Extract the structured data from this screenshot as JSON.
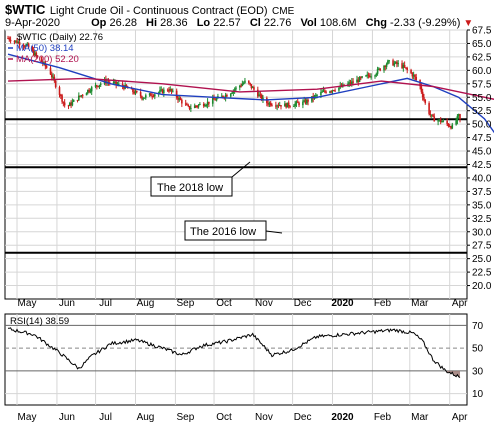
{
  "header": {
    "symbol": "$WTIC",
    "name": "Light Crude Oil - Continuous Contract (EOD)",
    "exchange": "CME",
    "date": "9-Apr-2020",
    "op_label": "Op",
    "op": "26.28",
    "hi_label": "Hi",
    "hi": "28.36",
    "lo_label": "Lo",
    "lo": "22.57",
    "cl_label": "Cl",
    "cl": "22.76",
    "vol_label": "Vol",
    "vol": "108.6M",
    "chg_label": "Chg",
    "chg": "-2.33 (-9.29%)",
    "chg_arrow": "▼"
  },
  "legend": {
    "price": "$WTIC (Daily) 22.76",
    "ma50": "MA(50) 38.14",
    "ma200": "MA(200) 52.20"
  },
  "annotations": {
    "low2018": "The 2018 low",
    "low2016": "The 2016 low"
  },
  "rsi_label": "RSI(14) 38.59",
  "colors": {
    "ma50": "#1f3fbf",
    "ma200": "#b0124f",
    "up": "#1b8a2e",
    "down": "#cc1b1b",
    "rsi_fill": "#9c7a76",
    "grid": "#d6d6d6"
  },
  "chart_data": [
    {
      "type": "candlestick",
      "title": "$WTIC (Daily) 22.76",
      "x_range": [
        "2019-04-24",
        "2020-04-09"
      ],
      "months": [
        "May",
        "Jun",
        "Jul",
        "Aug",
        "Sep",
        "Oct",
        "Nov",
        "Dec",
        "2020",
        "Feb",
        "Mar",
        "Apr"
      ],
      "ylim": [
        17.5,
        67.5
      ],
      "y_ticks": [
        20.0,
        22.5,
        25.0,
        27.5,
        30.0,
        32.5,
        35.0,
        37.5,
        40.0,
        42.5,
        45.0,
        47.5,
        50.0,
        52.5,
        55.0,
        57.5,
        60.0,
        62.5,
        65.0,
        67.5
      ],
      "horizontal_lines": [
        50.9,
        42.0,
        26.1
      ],
      "close_path": [
        [
          0,
          66.0
        ],
        [
          15,
          64.5
        ],
        [
          32,
          60.0
        ],
        [
          45,
          53.0
        ],
        [
          60,
          56.0
        ],
        [
          75,
          58.0
        ],
        [
          90,
          57.0
        ],
        [
          105,
          55.0
        ],
        [
          125,
          56.5
        ],
        [
          140,
          53.0
        ],
        [
          155,
          54.0
        ],
        [
          170,
          55.5
        ],
        [
          185,
          58.0
        ],
        [
          200,
          54.0
        ],
        [
          215,
          53.5
        ],
        [
          230,
          54.0
        ],
        [
          245,
          56.0
        ],
        [
          260,
          57.0
        ],
        [
          275,
          58.5
        ],
        [
          285,
          59.5
        ],
        [
          295,
          61.5
        ],
        [
          305,
          61.0
        ],
        [
          315,
          59.0
        ],
        [
          320,
          57.0
        ],
        [
          325,
          53.0
        ],
        [
          330,
          51.0
        ],
        [
          337,
          50.5
        ],
        [
          345,
          49.5
        ],
        [
          350,
          51.5
        ],
        [
          355,
          48.0
        ],
        [
          360,
          46.0
        ],
        [
          367,
          45.0
        ],
        [
          372,
          42.5
        ],
        [
          376,
          38.0
        ],
        [
          380,
          32.0
        ],
        [
          384,
          28.0
        ],
        [
          388,
          26.5
        ],
        [
          391,
          22.5
        ],
        [
          394,
          23.0
        ],
        [
          397,
          20.5
        ],
        [
          400,
          20.0
        ],
        [
          403,
          21.0
        ],
        [
          406,
          25.0
        ],
        [
          409,
          26.5
        ],
        [
          412,
          25.5
        ],
        [
          415,
          22.76
        ]
      ],
      "series": [
        {
          "name": "MA(50) 38.14",
          "points": [
            [
              0,
              63.0
            ],
            [
              40,
              60.5
            ],
            [
              80,
              57.5
            ],
            [
              120,
              55.5
            ],
            [
              160,
              55.0
            ],
            [
              200,
              54.5
            ],
            [
              240,
              55.0
            ],
            [
              280,
              57.0
            ],
            [
              310,
              58.5
            ],
            [
              330,
              57.0
            ],
            [
              350,
              55.0
            ],
            [
              370,
              51.0
            ],
            [
              385,
              46.0
            ],
            [
              400,
              42.0
            ],
            [
              415,
              38.14
            ]
          ]
        },
        {
          "name": "MA(200) 52.20",
          "points": [
            [
              0,
              58.0
            ],
            [
              60,
              58.5
            ],
            [
              120,
              57.5
            ],
            [
              180,
              56.0
            ],
            [
              240,
              56.5
            ],
            [
              290,
              58.0
            ],
            [
              330,
              57.0
            ],
            [
              360,
              55.5
            ],
            [
              390,
              54.0
            ],
            [
              415,
              52.2
            ]
          ]
        }
      ]
    },
    {
      "type": "line",
      "title": "RSI(14) 38.59",
      "ylim": [
        0,
        80
      ],
      "y_ticks": [
        10,
        30,
        50,
        70
      ],
      "reference_lines": [
        70,
        30
      ],
      "values": [
        [
          0,
          67
        ],
        [
          20,
          62
        ],
        [
          40,
          46
        ],
        [
          55,
          32
        ],
        [
          65,
          43
        ],
        [
          80,
          54
        ],
        [
          100,
          57
        ],
        [
          120,
          50
        ],
        [
          135,
          44
        ],
        [
          150,
          52
        ],
        [
          170,
          56
        ],
        [
          190,
          62
        ],
        [
          205,
          44
        ],
        [
          220,
          48
        ],
        [
          240,
          60
        ],
        [
          260,
          62
        ],
        [
          280,
          64
        ],
        [
          300,
          66
        ],
        [
          315,
          63
        ],
        [
          322,
          56
        ],
        [
          330,
          40
        ],
        [
          340,
          30
        ],
        [
          352,
          24
        ],
        [
          360,
          36
        ],
        [
          368,
          28
        ],
        [
          375,
          22
        ],
        [
          382,
          32
        ],
        [
          388,
          42
        ],
        [
          394,
          32
        ],
        [
          400,
          28
        ],
        [
          406,
          36
        ],
        [
          412,
          38.59
        ]
      ]
    }
  ]
}
